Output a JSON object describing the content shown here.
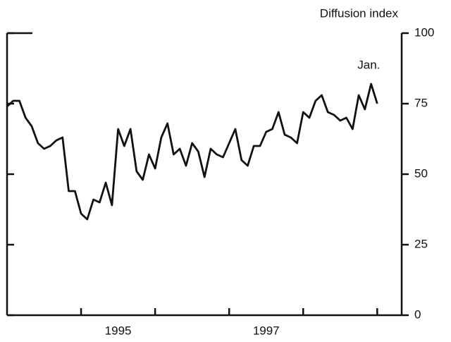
{
  "chart_data": {
    "type": "line",
    "y_label": "Diffusion index",
    "annotation": "Jan.",
    "x": [
      1994.0,
      1994.083,
      1994.167,
      1994.25,
      1994.333,
      1994.417,
      1994.5,
      1994.583,
      1994.667,
      1994.75,
      1994.833,
      1994.917,
      1995.0,
      1995.083,
      1995.167,
      1995.25,
      1995.333,
      1995.417,
      1995.5,
      1995.583,
      1995.667,
      1995.75,
      1995.833,
      1995.917,
      1996.0,
      1996.083,
      1996.167,
      1996.25,
      1996.333,
      1996.417,
      1996.5,
      1996.583,
      1996.667,
      1996.75,
      1996.833,
      1996.917,
      1997.0,
      1997.083,
      1997.167,
      1997.25,
      1997.333,
      1997.417,
      1997.5,
      1997.583,
      1997.667,
      1997.75,
      1997.833,
      1997.917,
      1998.0,
      1998.083,
      1998.167,
      1998.25,
      1998.333,
      1998.417,
      1998.5,
      1998.583,
      1998.667,
      1998.75,
      1998.833,
      1998.917,
      1999.0
    ],
    "series": [
      {
        "name": "Diffusion index",
        "color": "#111111",
        "values": [
          74,
          76,
          76,
          70,
          67,
          61,
          59,
          60,
          62,
          63,
          44,
          44,
          36,
          34,
          41,
          40,
          47,
          39,
          66,
          60,
          66,
          51,
          48,
          57,
          52,
          63,
          68,
          57,
          59,
          53,
          61,
          58,
          49,
          59,
          57,
          56,
          61,
          66,
          55,
          53,
          60,
          60,
          65,
          66,
          72,
          64,
          63,
          61,
          72,
          70,
          76,
          78,
          72,
          71,
          69,
          70,
          66,
          78,
          73,
          82,
          75
        ]
      }
    ],
    "xlim": [
      1994,
      1999.33
    ],
    "xticks": [
      1995,
      1996,
      1997,
      1998,
      1999
    ],
    "xtick_labels": [
      {
        "value": 1995.5,
        "label": "1995"
      },
      {
        "value": 1997.5,
        "label": "1997"
      }
    ],
    "ylim": [
      0,
      100
    ],
    "yticks": [
      0,
      25,
      50,
      75,
      100
    ]
  }
}
